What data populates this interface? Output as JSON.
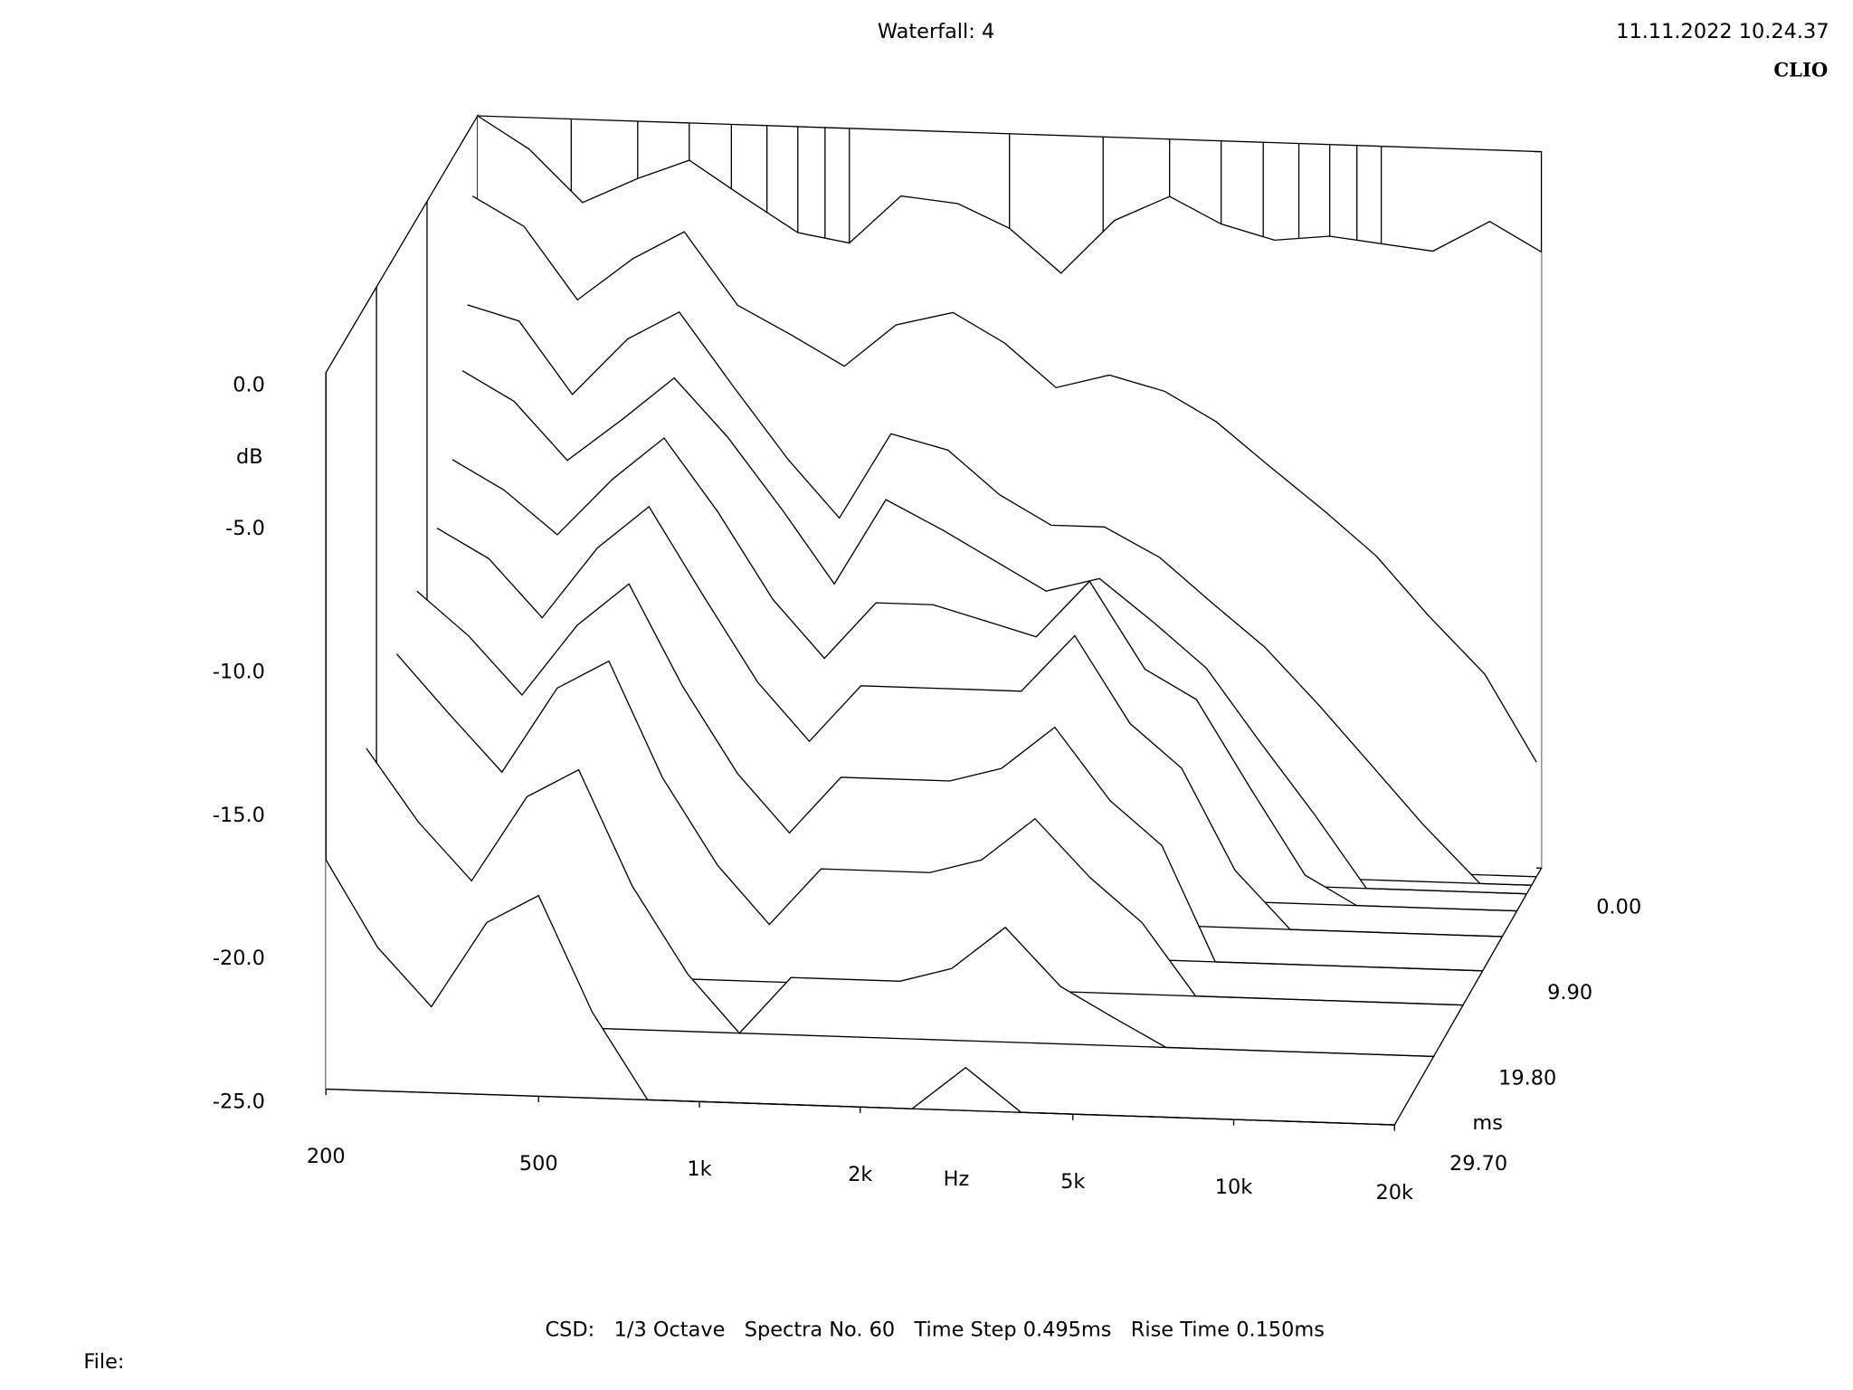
{
  "chart_data": {
    "type": "waterfall",
    "title": "Waterfall: 4",
    "timestamp": "11.11.2022 10.24.37",
    "brand": "CLIO",
    "ylabel": "dB",
    "xlabel": "Hz",
    "zlabel": "ms",
    "footer": "CSD:   1/3 Octave   Spectra No. 60   Time Step 0.495ms   Rise Time 0.150ms",
    "file_label": "File:",
    "log_x": true,
    "xlim": [
      200,
      20000
    ],
    "xticks": [
      200,
      500,
      {
        "value": 1000,
        "label": "1k"
      },
      {
        "value": 2000,
        "label": "2k"
      },
      {
        "value": 5000,
        "label": "5k"
      },
      {
        "value": 10000,
        "label": "10k"
      },
      {
        "value": 20000,
        "label": "20k"
      }
    ],
    "xgrid": [
      300,
      400,
      500,
      600,
      700,
      800,
      900,
      1000,
      2000,
      3000,
      4000,
      5000,
      6000,
      7000,
      8000,
      9000,
      10000
    ],
    "ylim": [
      -25,
      0
    ],
    "yticks": [
      {
        "value": 0,
        "label": "0.0"
      },
      {
        "value": -5,
        "label": "-5.0"
      },
      {
        "value": -10,
        "label": "-10.0"
      },
      {
        "value": -15,
        "label": "-15.0"
      },
      {
        "value": -20,
        "label": "-20.0"
      },
      {
        "value": -25,
        "label": "-25.0"
      }
    ],
    "zlim": [
      0,
      29.7
    ],
    "zticks": [
      {
        "value": 0,
        "label": "0.00"
      },
      {
        "value": 9.9,
        "label": "9.90"
      },
      {
        "value": 19.8,
        "label": "19.80"
      },
      {
        "value": 29.7,
        "label": "29.70"
      }
    ],
    "x": [
      200,
      250,
      315,
      400,
      500,
      630,
      800,
      1000,
      1250,
      1600,
      2000,
      2500,
      3150,
      4000,
      5000,
      6300,
      8000,
      10000,
      12500,
      16000,
      20000
    ],
    "spectra": [
      {
        "time": 0,
        "values": [
          0,
          -1.1,
          -2.9,
          -2,
          -1.3,
          -2.5,
          -3.7,
          -4,
          -2.3,
          -2.5,
          -3.3,
          -4.8,
          -2.9,
          -2,
          -2.9,
          -3.4,
          -3.2,
          -3.4,
          -3.6,
          -2.5,
          -3.5
        ]
      },
      {
        "time": 0.99,
        "values": [
          -2.5,
          -3.5,
          -6,
          -4.5,
          -3.5,
          -6,
          -7,
          -8,
          -6.5,
          -6,
          -7,
          -8.5,
          -8,
          -8.5,
          -9.5,
          -11,
          -12.5,
          -14,
          -16,
          -18,
          -21
        ]
      },
      {
        "time": 1.98,
        "values": [
          -6,
          -6.5,
          -9,
          -7,
          -6,
          -8.5,
          -11,
          -13,
          -10,
          -10.5,
          -12,
          -13,
          -13,
          -14,
          -15.5,
          -17,
          -19,
          -21,
          -23,
          -25,
          -25
        ]
      },
      {
        "time": 2.97,
        "values": [
          -8,
          -9,
          -11,
          -9.5,
          -8,
          -10,
          -12.5,
          -15,
          -12,
          -13,
          -14,
          -15,
          -14.5,
          -16,
          -17.5,
          -20,
          -22.5,
          -25,
          -25,
          -25,
          -25
        ]
      },
      {
        "time": 4.95,
        "values": [
          -10.5,
          -11.5,
          -13,
          -11,
          -9.5,
          -12,
          -15,
          -17,
          -15,
          -15,
          -15.5,
          -16,
          -14,
          -17,
          -18,
          -21,
          -24,
          -25,
          -25,
          -25,
          -25
        ]
      },
      {
        "time": 7.92,
        "values": [
          -12,
          -13,
          -15,
          -12.5,
          -11,
          -14,
          -17,
          -19,
          -17,
          -17,
          -17,
          -17,
          -15,
          -18,
          -19.5,
          -23,
          -25,
          -25,
          -25,
          -25,
          -25
        ]
      },
      {
        "time": 11.88,
        "values": [
          -13,
          -14.5,
          -16.5,
          -14,
          -12.5,
          -16,
          -19,
          -21,
          -19,
          -19,
          -19,
          -18.5,
          -17,
          -19.5,
          -21,
          -25,
          -25,
          -25,
          -25,
          -25,
          -25
        ]
      },
      {
        "time": 15.84,
        "values": [
          -14,
          -16,
          -18,
          -15,
          -14,
          -18,
          -21,
          -23,
          -21,
          -21,
          -21,
          -20.5,
          -19,
          -21,
          -22.5,
          -25,
          -25,
          -25,
          -25,
          -25,
          -25
        ]
      },
      {
        "time": 21.78,
        "values": [
          -15.5,
          -18,
          -20,
          -17,
          -16,
          -20,
          -23,
          -25,
          -23,
          -23,
          -23,
          -22.5,
          -21,
          -23,
          -24,
          -25,
          -25,
          -25,
          -25,
          -25,
          -25
        ]
      },
      {
        "time": 29.7,
        "values": [
          -17,
          -20,
          -22,
          -19,
          -18,
          -22,
          -25,
          -25,
          -25,
          -25,
          -25,
          -25,
          -23.5,
          -25,
          -25,
          -25,
          -25,
          -25,
          -25,
          -25,
          -25
        ]
      }
    ]
  }
}
